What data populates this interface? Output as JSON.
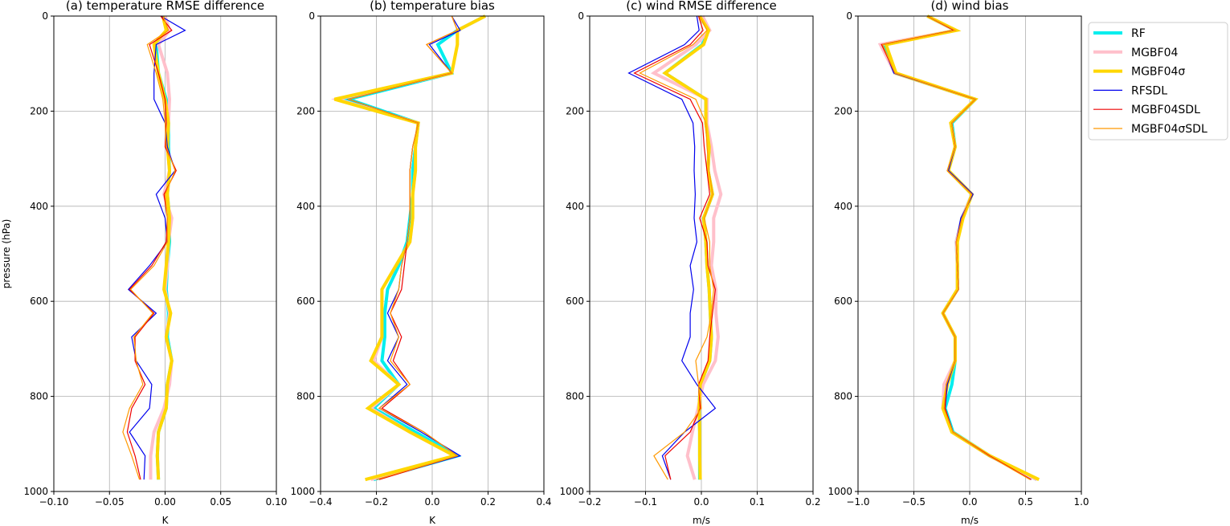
{
  "figure": {
    "ylabel": "pressure (hPa)",
    "levels": [
      0,
      30,
      60,
      120,
      175,
      225,
      275,
      325,
      375,
      425,
      475,
      525,
      575,
      625,
      675,
      725,
      775,
      825,
      875,
      925,
      975
    ],
    "yticks": [
      0,
      200,
      400,
      600,
      800,
      1000
    ],
    "ytick_labels": [
      "0",
      "200",
      "400",
      "600",
      "800",
      "1000"
    ]
  },
  "legend": {
    "position": "upper-right",
    "entries": [
      {
        "label": "RF",
        "color": "#00eeee",
        "width": 4
      },
      {
        "label": "MGBF04",
        "color": "#ffc0cb",
        "width": 4
      },
      {
        "label": "MGBF04σ",
        "color": "#ffd700",
        "width": 4
      },
      {
        "label": "RFSDL",
        "color": "#0000ee",
        "width": 1.2
      },
      {
        "label": "MGBF04SDL",
        "color": "#ee0000",
        "width": 1.2
      },
      {
        "label": "MGBF04σSDL",
        "color": "#ff9900",
        "width": 1.2
      }
    ]
  },
  "chart_data": [
    {
      "type": "line",
      "title": "(a) temperature RMSE difference",
      "xlabel": "K",
      "xlim": [
        -0.1,
        0.1
      ],
      "ylim": [
        1000,
        0
      ],
      "xticks": [
        -0.1,
        -0.05,
        0.0,
        0.05,
        0.1
      ],
      "xtick_labels": [
        "−0.10",
        "−0.05",
        "0.00",
        "0.05",
        "0.10"
      ],
      "grid": true,
      "series": [
        {
          "name": "RF",
          "values": [
            0.0,
            0.002,
            -0.008,
            -0.006,
            0.001,
            0.003,
            0.003,
            0.004,
            0.002,
            0.004,
            0.004,
            0.002,
            0.001,
            0.003,
            0.002,
            0.006,
            0.002,
            0.001,
            -0.006,
            -0.007,
            -0.006
          ]
        },
        {
          "name": "MGBF04",
          "values": [
            0.0,
            0.004,
            -0.006,
            0.002,
            0.004,
            0.003,
            0.002,
            0.004,
            -0.001,
            0.006,
            0.003,
            0.002,
            0.0,
            0.004,
            0.001,
            0.006,
            0.004,
            -0.001,
            -0.01,
            -0.013,
            -0.013
          ]
        },
        {
          "name": "MGBF04σ",
          "values": [
            -0.002,
            0.001,
            -0.01,
            -0.006,
            0.0,
            0.003,
            0.002,
            0.004,
            0.002,
            0.004,
            0.003,
            0.001,
            -0.001,
            0.005,
            0.001,
            0.006,
            0.002,
            0.001,
            -0.006,
            -0.007,
            -0.006
          ]
        },
        {
          "name": "RFSDL",
          "values": [
            -0.004,
            0.018,
            -0.008,
            -0.01,
            -0.01,
            0.0,
            0.002,
            0.009,
            -0.008,
            0.0,
            0.002,
            -0.014,
            -0.033,
            -0.008,
            -0.03,
            -0.026,
            -0.012,
            -0.014,
            -0.032,
            -0.018,
            -0.019
          ]
        },
        {
          "name": "MGBF04SDL",
          "values": [
            -0.004,
            0.006,
            -0.014,
            -0.006,
            0.0,
            0.001,
            0.0,
            0.01,
            -0.001,
            0.002,
            0.001,
            -0.012,
            -0.032,
            -0.01,
            -0.027,
            -0.027,
            -0.018,
            -0.03,
            -0.034,
            -0.027,
            -0.022
          ]
        },
        {
          "name": "MGBF04σSDL",
          "values": [
            -0.002,
            0.003,
            -0.016,
            -0.008,
            -0.002,
            0.0,
            0.001,
            0.009,
            0.0,
            0.002,
            0.002,
            -0.01,
            -0.031,
            -0.011,
            -0.028,
            -0.026,
            -0.02,
            -0.032,
            -0.038,
            -0.03,
            -0.023
          ]
        }
      ]
    },
    {
      "type": "line",
      "title": "(b) temperature bias",
      "xlabel": "K",
      "xlim": [
        -0.4,
        0.4
      ],
      "ylim": [
        1000,
        0
      ],
      "xticks": [
        -0.4,
        -0.2,
        0.0,
        0.2,
        0.4
      ],
      "xtick_labels": [
        "−0.4",
        "−0.2",
        "0.0",
        "0.2",
        "0.4"
      ],
      "grid": true,
      "series": [
        {
          "name": "RF",
          "values": [
            0.19,
            0.09,
            0.02,
            0.07,
            -0.3,
            -0.05,
            -0.06,
            -0.07,
            -0.07,
            -0.08,
            -0.09,
            -0.12,
            -0.16,
            -0.17,
            -0.17,
            -0.18,
            -0.12,
            -0.21,
            -0.06,
            0.09,
            -0.21
          ]
        },
        {
          "name": "MGBF04",
          "values": [
            0.19,
            0.09,
            0.09,
            0.07,
            -0.34,
            -0.05,
            -0.06,
            -0.06,
            -0.07,
            -0.07,
            -0.08,
            -0.13,
            -0.18,
            -0.18,
            -0.18,
            -0.21,
            -0.12,
            -0.22,
            -0.08,
            0.08,
            -0.22
          ]
        },
        {
          "name": "MGBF04σ",
          "values": [
            0.19,
            0.09,
            0.09,
            0.07,
            -0.35,
            -0.05,
            -0.06,
            -0.06,
            -0.07,
            -0.07,
            -0.08,
            -0.13,
            -0.18,
            -0.18,
            -0.18,
            -0.22,
            -0.12,
            -0.23,
            -0.08,
            0.08,
            -0.24
          ]
        },
        {
          "name": "RFSDL",
          "values": [
            0.07,
            0.1,
            -0.01,
            0.07,
            -0.3,
            -0.05,
            -0.07,
            -0.08,
            -0.08,
            -0.08,
            -0.09,
            -0.11,
            -0.12,
            -0.16,
            -0.12,
            -0.16,
            -0.09,
            -0.19,
            -0.04,
            0.1,
            -0.2
          ]
        },
        {
          "name": "MGBF04SDL",
          "values": [
            0.07,
            0.09,
            -0.02,
            0.07,
            -0.3,
            -0.05,
            -0.07,
            -0.08,
            -0.08,
            -0.08,
            -0.09,
            -0.1,
            -0.11,
            -0.15,
            -0.11,
            -0.14,
            -0.08,
            -0.18,
            -0.03,
            0.09,
            -0.19
          ]
        },
        {
          "name": "MGBF04σSDL",
          "values": [
            0.07,
            0.09,
            -0.02,
            0.07,
            -0.3,
            -0.05,
            -0.07,
            -0.08,
            -0.08,
            -0.08,
            -0.09,
            -0.11,
            -0.12,
            -0.15,
            -0.12,
            -0.15,
            -0.08,
            -0.19,
            -0.03,
            0.09,
            -0.2
          ]
        }
      ]
    },
    {
      "type": "line",
      "title": "(c) wind RMSE difference",
      "xlabel": "m/s",
      "xlim": [
        -0.2,
        0.2
      ],
      "ylim": [
        1000,
        0
      ],
      "xticks": [
        -0.2,
        -0.1,
        0.0,
        0.1,
        0.2
      ],
      "xtick_labels": [
        "−0.2",
        "−0.1",
        "0.0",
        "0.1",
        "0.2"
      ],
      "grid": true,
      "series": [
        {
          "name": "RF",
          "values": [
            -0.003,
            0.013,
            0.002,
            -0.065,
            0.008,
            0.008,
            0.014,
            0.012,
            0.02,
            0.004,
            0.008,
            0.01,
            0.014,
            0.016,
            0.018,
            0.015,
            -0.002,
            -0.004,
            -0.003,
            -0.003,
            -0.003
          ]
        },
        {
          "name": "MGBF04",
          "values": [
            0.002,
            0.015,
            -0.01,
            -0.085,
            0.01,
            0.01,
            0.018,
            0.024,
            0.035,
            0.022,
            0.022,
            0.018,
            0.026,
            0.026,
            0.03,
            0.025,
            0.003,
            -0.006,
            -0.016,
            -0.025,
            -0.012
          ]
        },
        {
          "name": "MGBF04σ",
          "values": [
            -0.003,
            0.013,
            0.004,
            -0.065,
            0.008,
            0.008,
            0.014,
            0.012,
            0.02,
            0.004,
            0.008,
            0.01,
            0.014,
            0.016,
            0.018,
            0.015,
            -0.002,
            -0.004,
            -0.003,
            -0.003,
            -0.002
          ]
        },
        {
          "name": "RFSDL",
          "values": [
            -0.008,
            -0.004,
            -0.03,
            -0.13,
            -0.035,
            -0.015,
            -0.012,
            -0.013,
            -0.011,
            -0.013,
            -0.008,
            -0.02,
            -0.014,
            -0.02,
            -0.02,
            -0.035,
            -0.008,
            0.025,
            -0.03,
            -0.07,
            -0.055
          ]
        },
        {
          "name": "MGBF04SDL",
          "values": [
            -0.005,
            0.003,
            -0.02,
            -0.12,
            -0.02,
            0.002,
            0.005,
            0.01,
            0.015,
            -0.003,
            0.01,
            0.012,
            0.025,
            0.02,
            0.015,
            0.012,
            -0.005,
            -0.002,
            -0.02,
            -0.065,
            -0.055
          ]
        },
        {
          "name": "MGBF04σSDL",
          "values": [
            -0.003,
            0.01,
            -0.015,
            -0.11,
            -0.01,
            0.008,
            0.01,
            0.014,
            0.02,
            0.005,
            0.015,
            0.015,
            0.022,
            0.018,
            0.01,
            -0.01,
            -0.005,
            0.0,
            -0.03,
            -0.085,
            -0.06
          ]
        }
      ]
    },
    {
      "type": "line",
      "title": "(d) wind bias",
      "xlabel": "m/s",
      "xlim": [
        -1.0,
        1.0
      ],
      "ylim": [
        1000,
        0
      ],
      "xticks": [
        -1.0,
        -0.5,
        0.0,
        0.5,
        1.0
      ],
      "xtick_labels": [
        "−1.0",
        "−0.5",
        "0.0",
        "0.5",
        "1.0"
      ],
      "grid": true,
      "series": [
        {
          "name": "RF",
          "values": [
            -0.38,
            -0.13,
            -0.77,
            -0.67,
            0.05,
            -0.16,
            -0.13,
            -0.19,
            0.02,
            -0.07,
            -0.12,
            -0.11,
            -0.11,
            -0.24,
            -0.13,
            -0.13,
            -0.16,
            -0.22,
            -0.15,
            0.18,
            0.6
          ]
        },
        {
          "name": "MGBF04",
          "values": [
            -0.38,
            -0.13,
            -0.8,
            -0.67,
            0.05,
            -0.17,
            -0.13,
            -0.19,
            0.02,
            -0.07,
            -0.12,
            -0.11,
            -0.11,
            -0.24,
            -0.13,
            -0.13,
            -0.23,
            -0.24,
            -0.16,
            0.18,
            0.6
          ]
        },
        {
          "name": "MGBF04σ",
          "values": [
            -0.38,
            -0.12,
            -0.75,
            -0.66,
            0.05,
            -0.17,
            -0.13,
            -0.19,
            0.02,
            -0.06,
            -0.11,
            -0.11,
            -0.11,
            -0.24,
            -0.13,
            -0.13,
            -0.2,
            -0.24,
            -0.16,
            0.18,
            0.62
          ]
        },
        {
          "name": "RFSDL",
          "values": [
            -0.38,
            -0.14,
            -0.78,
            -0.68,
            0.05,
            -0.16,
            -0.13,
            -0.19,
            0.03,
            -0.08,
            -0.12,
            -0.11,
            -0.1,
            -0.24,
            -0.13,
            -0.13,
            -0.2,
            -0.22,
            -0.15,
            0.17,
            0.55
          ]
        },
        {
          "name": "MGBF04SDL",
          "values": [
            -0.38,
            -0.14,
            -0.79,
            -0.67,
            0.05,
            -0.16,
            -0.13,
            -0.2,
            0.02,
            -0.07,
            -0.12,
            -0.11,
            -0.1,
            -0.24,
            -0.13,
            -0.13,
            -0.21,
            -0.22,
            -0.15,
            0.18,
            0.55
          ]
        },
        {
          "name": "MGBF04σSDL",
          "values": [
            -0.38,
            -0.13,
            -0.78,
            -0.67,
            0.05,
            -0.16,
            -0.13,
            -0.2,
            0.02,
            -0.07,
            -0.12,
            -0.11,
            -0.1,
            -0.24,
            -0.13,
            -0.13,
            -0.21,
            -0.23,
            -0.15,
            0.17,
            0.54
          ]
        }
      ]
    }
  ]
}
